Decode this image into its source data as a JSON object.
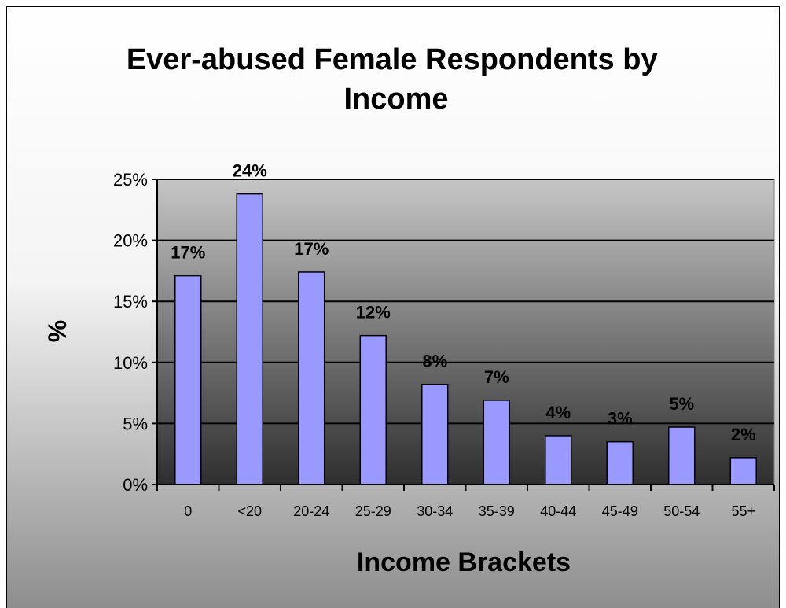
{
  "chart_data": {
    "type": "bar",
    "title": "Ever-abused Female Respondents by Income",
    "title_lines": [
      "Ever-abused Female Respondents by",
      "Income"
    ],
    "xlabel": "Income Brackets",
    "ylabel": "%",
    "categories": [
      "0",
      "<20",
      "20-24",
      "25-29",
      "30-34",
      "35-39",
      "40-44",
      "45-49",
      "50-54",
      "55+"
    ],
    "values": [
      17,
      24,
      17,
      12,
      8,
      7,
      4,
      3,
      5,
      2
    ],
    "bar_values": [
      17.1,
      23.8,
      17.4,
      12.2,
      8.2,
      6.9,
      4.0,
      3.5,
      4.7,
      2.2
    ],
    "data_labels": [
      "17%",
      "24%",
      "17%",
      "12%",
      "8%",
      "7%",
      "4%",
      "3%",
      "5%",
      "2%"
    ],
    "ylim": [
      0,
      25
    ],
    "yticks": [
      0,
      5,
      10,
      15,
      20,
      25
    ],
    "ytick_labels": [
      "0%",
      "5%",
      "10%",
      "15%",
      "20%",
      "25%"
    ],
    "grid": true,
    "legend": "none",
    "colors": {
      "bar_fill": "#9999ff",
      "bar_stroke": "#000000",
      "plot_bg_top": "#c6c6c6",
      "plot_bg_bottom": "#2e2e2e",
      "outer_bg_top": "#ffffff",
      "outer_bg_bottom": "#8a8a8a",
      "gridline": "#000000"
    }
  }
}
